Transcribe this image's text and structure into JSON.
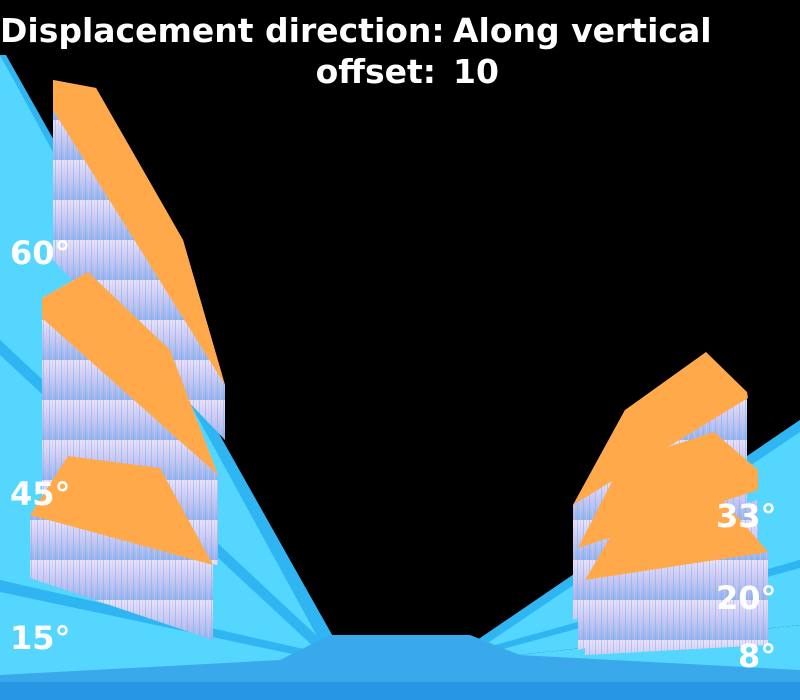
{
  "header": {
    "direction_label": "Displacement direction:",
    "direction_value": "Along vertical",
    "offset_label": "offset:",
    "offset_value": "10"
  },
  "angles": {
    "left_top": "60°",
    "left_middle": "45°",
    "left_bottom": "15°",
    "right_top": "33°",
    "right_middle": "20°",
    "right_bottom": "8°"
  },
  "colors": {
    "background": "#000000",
    "slope": "#55d6ff",
    "slope_edge": "#2fb6f2",
    "floor": "#3aa9ec",
    "block_top": "#ffa94a",
    "block_side": "#b9c6f2",
    "text": "#ffffff"
  }
}
